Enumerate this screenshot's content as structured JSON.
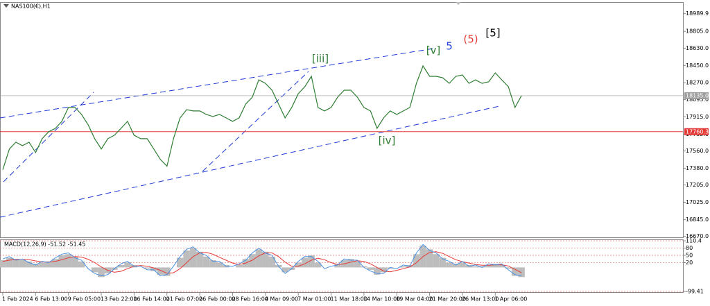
{
  "chart_data": [
    {
      "type": "line",
      "title": "NAS100(€),H1",
      "categories": [
        "1 Feb 2024",
        null,
        null,
        null,
        null,
        "6 Feb 13:00",
        null,
        null,
        null,
        null,
        "9 Feb 05:00",
        null,
        null,
        null,
        null,
        "13 Feb 22:00",
        null,
        null,
        null,
        null,
        "16 Feb 14:00",
        null,
        null,
        null,
        null,
        "21 Feb 07:00",
        null,
        null,
        null,
        null,
        "26 Feb 00:00",
        null,
        null,
        null,
        null,
        "28 Feb 16:00",
        null,
        null,
        null,
        null,
        "4 Mar 09:00",
        null,
        null,
        null,
        null,
        "7 Mar 01:00",
        null,
        null,
        null,
        null,
        "11 Mar 18:00",
        null,
        null,
        null,
        null,
        "14 Mar 10:00",
        null,
        null,
        null,
        null,
        "19 Mar 04:00",
        null,
        null,
        null,
        null,
        "21 Mar 20:00",
        null,
        null,
        null,
        null,
        "26 Mar 13:00",
        null,
        null,
        null,
        null,
        "1 Apr 06:00",
        null,
        null,
        null,
        null
      ],
      "series": [
        {
          "color": "#2e7d32",
          "values": [
            17363,
            17580,
            17650,
            17615,
            17650,
            17543,
            17687,
            17760,
            17795,
            17868,
            18012,
            18012,
            17940,
            17832,
            17687,
            17580,
            17687,
            17723,
            17795,
            17868,
            17723,
            17687,
            17687,
            17580,
            17471,
            17400,
            17687,
            17904,
            17990,
            17976,
            17976,
            17940,
            17918,
            17940,
            17904,
            17868,
            17904,
            18048,
            18120,
            18300,
            18264,
            18192,
            18048,
            17904,
            18012,
            18156,
            18228,
            18337,
            18012,
            17976,
            18012,
            18120,
            18192,
            18192,
            18120,
            18012,
            17976,
            17795,
            17904,
            17976,
            17940,
            17976,
            18012,
            18264,
            18445,
            18337,
            18337,
            18322,
            18264,
            18337,
            18351,
            18264,
            18300,
            18264,
            18280,
            18373,
            18300,
            18228,
            18012,
            18135
          ]
        }
      ],
      "ylim": [
        16660,
        19110
      ],
      "yticks": [
        18989.9,
        {
          "value": 18805,
          "label": "18805.0"
        },
        {
          "value": 18630,
          "label": "18630.0"
        },
        {
          "value": 18450,
          "label": "18450.0"
        },
        {
          "value": 18270,
          "label": "18270.0"
        },
        {
          "value": 18095,
          "label": "18095.0"
        },
        {
          "value": 17915,
          "label": "17915.0"
        },
        {
          "value": 17735,
          "label": "17735.0"
        },
        {
          "value": 17560,
          "label": "17560.0"
        },
        {
          "value": 17380,
          "label": "17380.0"
        },
        {
          "value": 17205,
          "label": "17205.0"
        },
        {
          "value": 17025,
          "label": "17025.0"
        },
        {
          "value": 16845,
          "label": "16845.0"
        },
        {
          "value": 16670,
          "label": "16670.0"
        }
      ],
      "level_line": {
        "value": 17760.3,
        "color": "#e53935"
      },
      "current_price": {
        "value": 18135,
        "label": "18135.0",
        "color": "#9e9e9e"
      },
      "annotations": [
        {
          "text": "[iii]",
          "color": "#2e7d32"
        },
        {
          "text": "[v]",
          "color": "#2e7d32"
        },
        {
          "text": "5",
          "color": "#1e3ad6"
        },
        {
          "text": "(5)",
          "color": "#e53935"
        },
        {
          "text": "[5]",
          "color": "#000000"
        },
        {
          "text": "[iv]",
          "color": "#2e7d32"
        }
      ]
    },
    {
      "type": "macd",
      "title": "MACD(12,26,9) -51.52 -51.45",
      "ylim": [
        -99.41,
        110.4
      ],
      "yticks": [
        110.4,
        80,
        50,
        20,
        -99.41
      ],
      "histogram": {
        "color": "#bdbdbd",
        "values": [
          30,
          40,
          35,
          30,
          25,
          15,
          20,
          25,
          35,
          50,
          55,
          45,
          25,
          0,
          -20,
          -40,
          -25,
          -10,
          10,
          20,
          10,
          0,
          -5,
          -15,
          -30,
          -35,
          0,
          40,
          70,
          80,
          65,
          45,
          30,
          20,
          10,
          0,
          10,
          35,
          55,
          75,
          65,
          45,
          10,
          -20,
          -10,
          20,
          40,
          50,
          20,
          0,
          0,
          15,
          30,
          35,
          25,
          5,
          -10,
          -30,
          -20,
          -5,
          0,
          5,
          10,
          55,
          90,
          75,
          55,
          40,
          20,
          15,
          20,
          10,
          5,
          5,
          10,
          15,
          10,
          -5,
          -35,
          -40
        ]
      },
      "series": [
        {
          "color": "#e53935",
          "values": [
            25,
            30,
            33,
            34,
            32,
            27,
            23,
            22,
            25,
            32,
            40,
            45,
            43,
            34,
            20,
            2,
            -12,
            -20,
            -16,
            -5,
            5,
            8,
            5,
            -2,
            -12,
            -24,
            -22,
            -5,
            20,
            45,
            60,
            62,
            55,
            42,
            30,
            18,
            12,
            18,
            30,
            48,
            60,
            60,
            45,
            22,
            5,
            5,
            15,
            30,
            38,
            32,
            20,
            12,
            15,
            22,
            28,
            25,
            15,
            0,
            -15,
            -18,
            -12,
            -5,
            2,
            20,
            45,
            62,
            65,
            58,
            45,
            32,
            24,
            18,
            12,
            9,
            9,
            11,
            11,
            6,
            -8,
            -22
          ]
        },
        {
          "color": "#4a90e2",
          "values": [
            35,
            45,
            30,
            35,
            20,
            10,
            25,
            20,
            40,
            55,
            60,
            40,
            30,
            -5,
            -25,
            -35,
            -30,
            -5,
            15,
            25,
            5,
            5,
            -10,
            -10,
            -35,
            -30,
            5,
            45,
            75,
            85,
            60,
            50,
            25,
            25,
            5,
            5,
            15,
            30,
            60,
            80,
            60,
            50,
            5,
            -25,
            -5,
            25,
            45,
            45,
            25,
            -5,
            5,
            10,
            35,
            30,
            30,
            0,
            -15,
            -25,
            -25,
            0,
            -5,
            10,
            5,
            60,
            95,
            70,
            60,
            35,
            25,
            10,
            25,
            5,
            10,
            0,
            15,
            10,
            15,
            -10,
            -30,
            -35
          ]
        }
      ]
    }
  ]
}
